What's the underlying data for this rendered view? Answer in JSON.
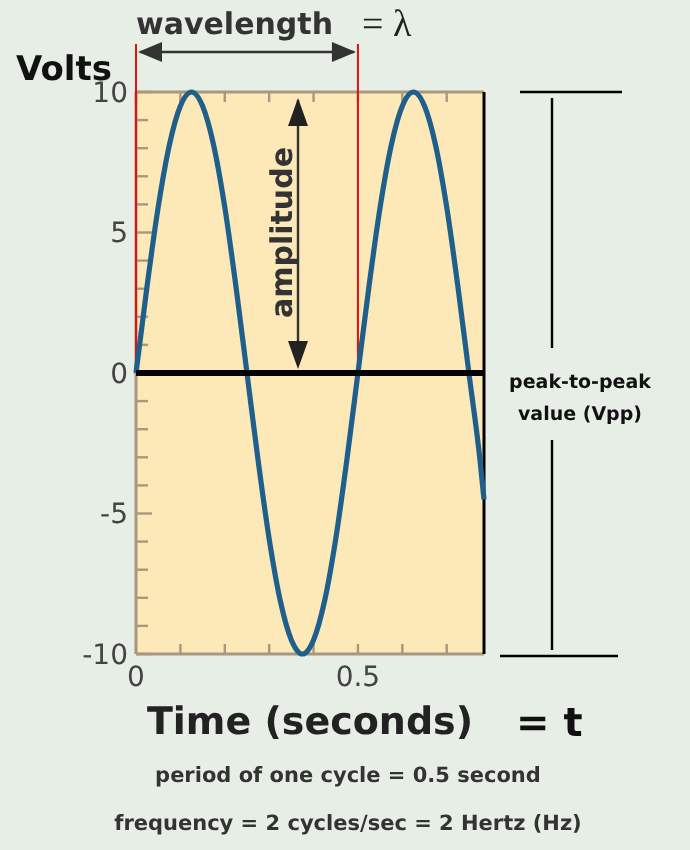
{
  "chart_data": {
    "type": "line",
    "ylabel": "Volts",
    "xlabel": "Time (seconds)",
    "annotations": [
      "wavelength",
      "= λ",
      "amplitude",
      "peak-to-peak value (Vpp)",
      "= t",
      "period of one cycle = 0.5 second",
      "frequency = 2 cycles/sec = 2 Hertz (Hz)"
    ],
    "series": [
      {
        "color": "#1f5f8b",
        "x": [
          0,
          0.025,
          0.05,
          0.075,
          0.1,
          0.125,
          0.15,
          0.175,
          0.2,
          0.225,
          0.25,
          0.275,
          0.3,
          0.325,
          0.35,
          0.375,
          0.4,
          0.425,
          0.45,
          0.475,
          0.5,
          0.525,
          0.55,
          0.575,
          0.6,
          0.625,
          0.65,
          0.675,
          0.7,
          0.725,
          0.75,
          0.775,
          0.784
        ],
        "values": [
          0,
          3.1,
          5.9,
          8.1,
          9.5,
          10,
          9.5,
          8.1,
          5.9,
          3.1,
          0,
          -3.1,
          -5.9,
          -8.1,
          -9.5,
          -10,
          -9.5,
          -8.1,
          -5.9,
          -3.1,
          0,
          3.1,
          5.9,
          8.1,
          9.5,
          10,
          9.5,
          8.1,
          5.9,
          3.1,
          0,
          -3.1,
          -4.5
        ]
      }
    ],
    "xlim": [
      0,
      0.784
    ],
    "ylim": [
      -10,
      10
    ],
    "xticks": [
      0,
      {
        "value": 0.1,
        "label": null
      },
      {
        "value": 0.2,
        "label": null
      },
      {
        "value": 0.3,
        "label": null
      },
      {
        "value": 0.4,
        "label": null
      },
      0.5,
      {
        "value": 0.6,
        "label": null
      },
      {
        "value": 0.7,
        "label": null
      }
    ],
    "yticks": [
      -10,
      {
        "value": -9,
        "label": null
      },
      {
        "value": -8,
        "label": null
      },
      {
        "value": -7,
        "label": null
      },
      {
        "value": -6,
        "label": null
      },
      -5,
      {
        "value": -4,
        "label": null
      },
      {
        "value": -3,
        "label": null
      },
      {
        "value": -2,
        "label": null
      },
      {
        "value": -1,
        "label": null
      },
      0,
      {
        "value": 1,
        "label": null
      },
      {
        "value": 2,
        "label": null
      },
      {
        "value": 3,
        "label": null
      },
      {
        "value": 4,
        "label": null
      },
      5,
      {
        "value": 6,
        "label": null
      },
      {
        "value": 7,
        "label": null
      },
      {
        "value": 8,
        "label": null
      },
      {
        "value": 9,
        "label": null
      },
      10
    ],
    "ref_lines": [
      {
        "axis": "y",
        "value": 0,
        "color": "#000000"
      },
      {
        "axis": "x",
        "value": 0,
        "color": "#e01010"
      },
      {
        "axis": "x",
        "value": 0.5,
        "color": "#e01010"
      }
    ],
    "grid": false,
    "marker": "none",
    "line_style": "solid"
  }
}
